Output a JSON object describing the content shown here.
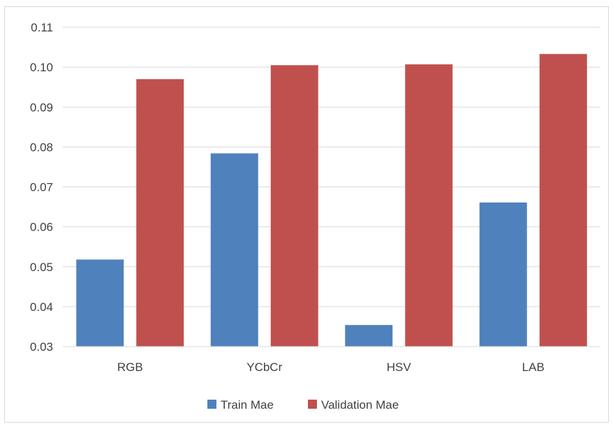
{
  "chart_data": {
    "type": "bar",
    "title": "",
    "xlabel": "",
    "ylabel": "",
    "categories": [
      "RGB",
      "YCbCr",
      "HSV",
      "LAB"
    ],
    "series": [
      {
        "name": "Train Mae",
        "color": "#4f81bd",
        "values": [
          0.0518,
          0.0784,
          0.0354,
          0.0661
        ]
      },
      {
        "name": "Validation Mae",
        "color": "#c0504d",
        "values": [
          0.097,
          0.1005,
          0.1007,
          0.1033
        ]
      }
    ],
    "ylim": [
      0.03,
      0.11
    ],
    "yticks": [
      "0.03",
      "0.04",
      "0.05",
      "0.06",
      "0.07",
      "0.08",
      "0.09",
      "0.10",
      "0.11"
    ],
    "grid": true,
    "legend_position": "bottom"
  }
}
